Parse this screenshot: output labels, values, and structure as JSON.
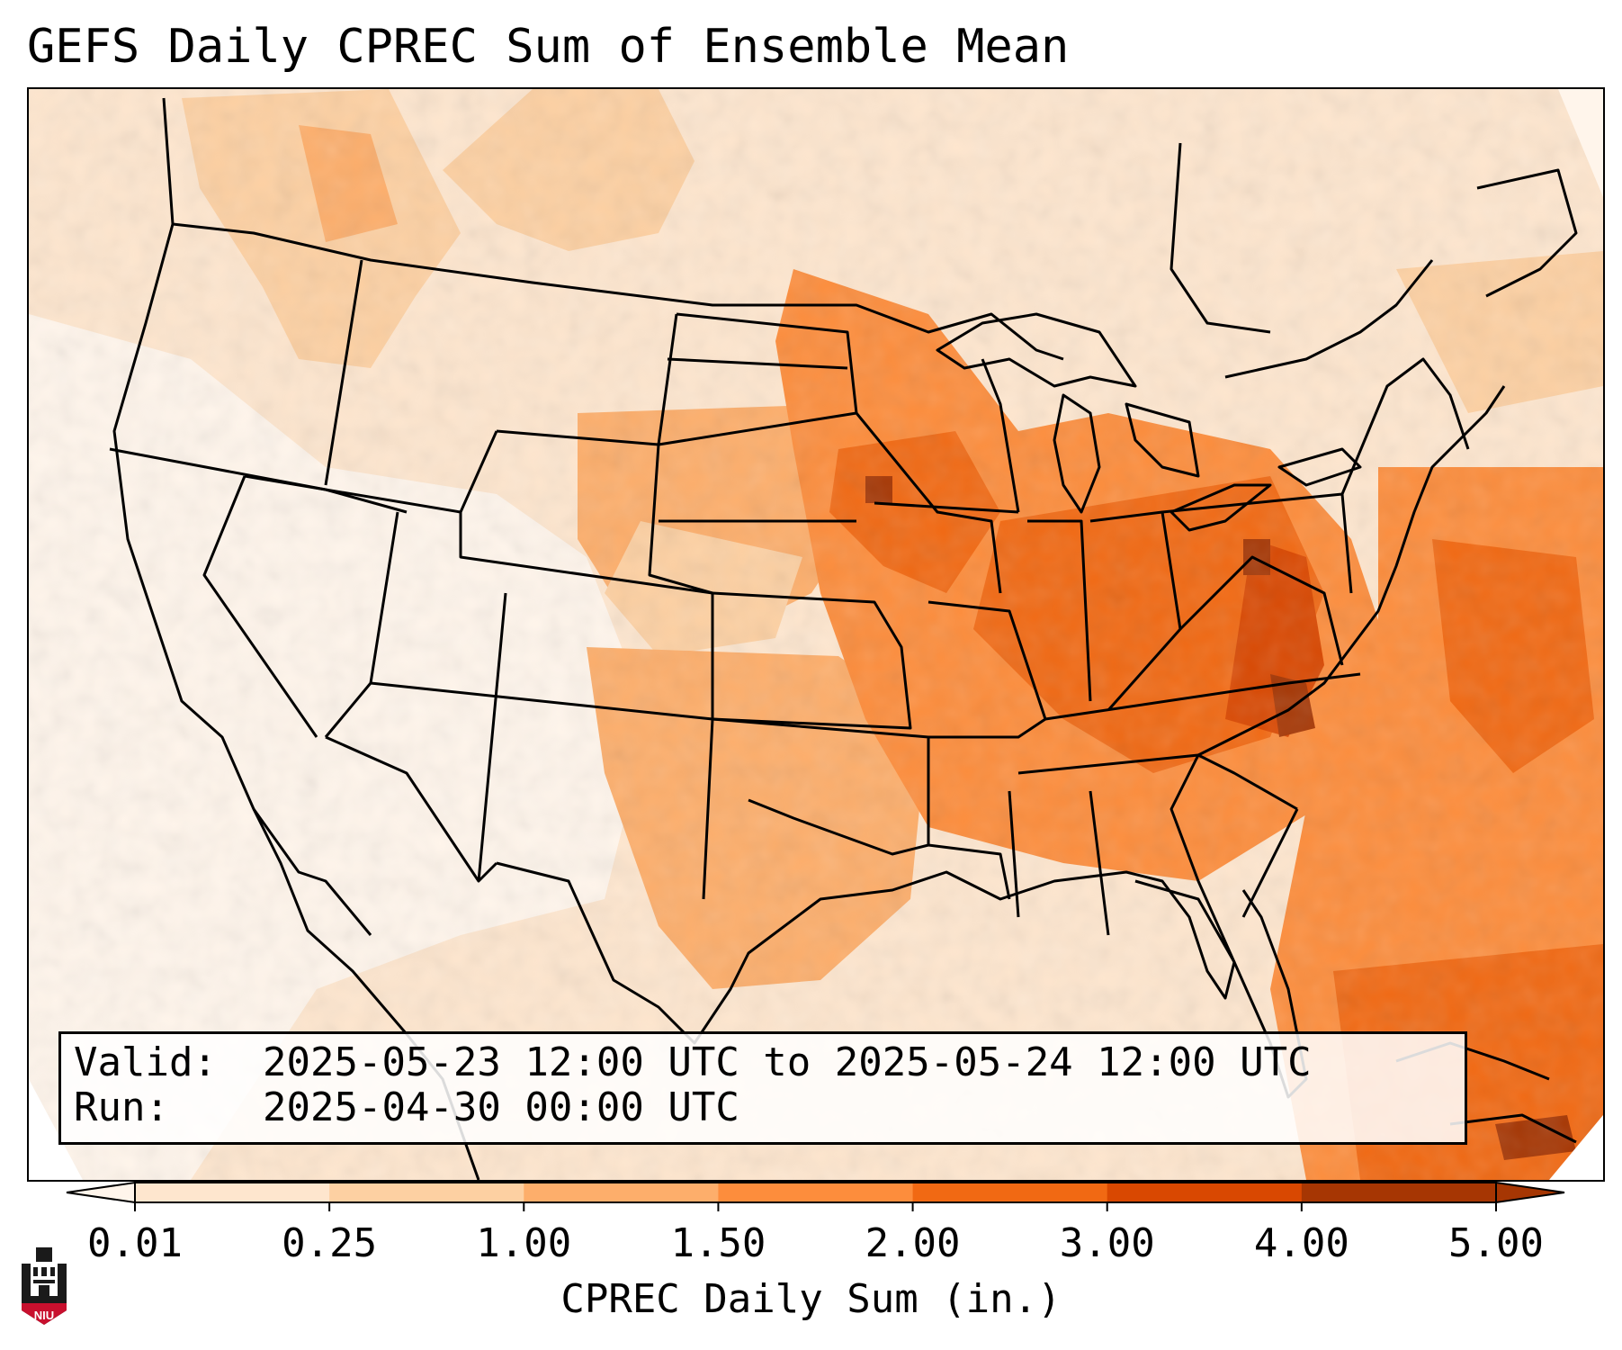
{
  "title": "GEFS Daily CPREC Sum of Ensemble Mean",
  "info": {
    "valid_label": "Valid:",
    "valid_value": "2025-05-23 12:00 UTC to 2025-05-24 12:00 UTC",
    "run_label": "Run:",
    "run_value": "2025-04-30 00:00 UTC"
  },
  "colorbar": {
    "label": "CPREC Daily Sum (in.)",
    "ticks": [
      "0.01",
      "0.25",
      "1.00",
      "1.50",
      "2.00",
      "3.00",
      "4.00",
      "5.00"
    ],
    "colors": [
      "#fff5eb",
      "#fee6ce",
      "#fdd0a2",
      "#fdae6b",
      "#fd8d3c",
      "#f16913",
      "#d94801",
      "#a63603"
    ],
    "extend": "both"
  },
  "logo": {
    "text": "NIU",
    "icon": "niu-university-logo-icon",
    "color": "#c8102e"
  },
  "map": {
    "region": "Continental United States",
    "colormap": "Oranges",
    "basemap": "state and coastline borders"
  }
}
